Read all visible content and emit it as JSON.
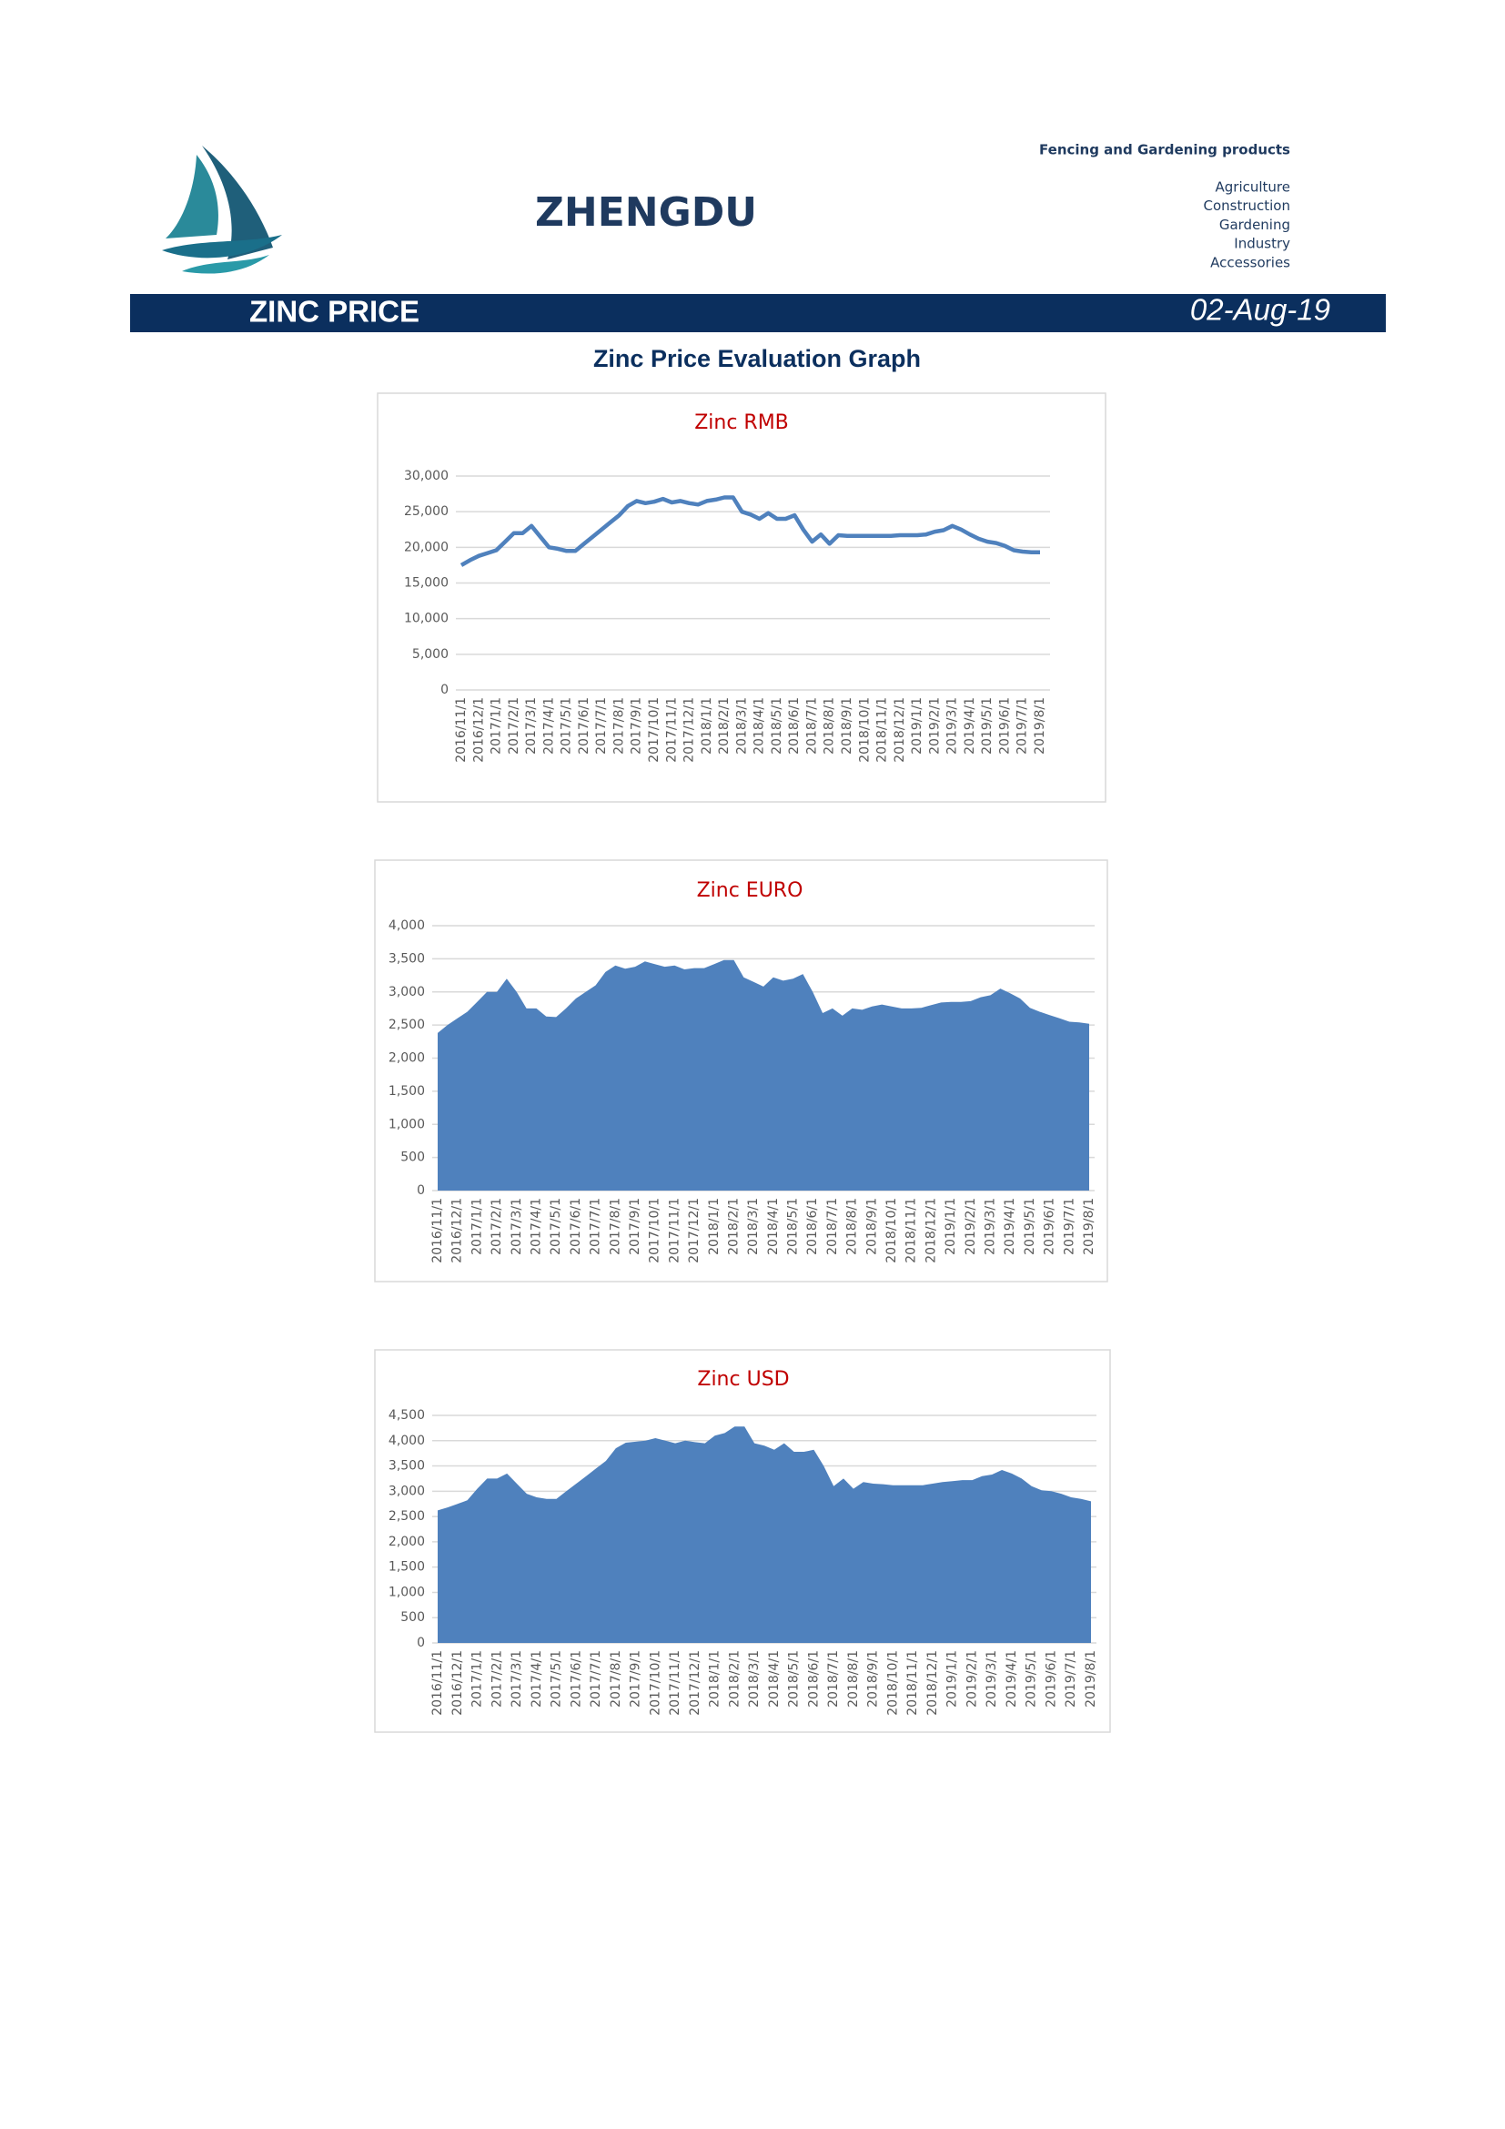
{
  "header": {
    "title": "ZHENGDU",
    "tagline": "Fencing and Gardening products",
    "products": [
      "Agriculture",
      "Construction",
      "Gardening",
      "Industry",
      "Accessories"
    ],
    "band_title": "ZINC PRICE",
    "date": "02-Aug-19",
    "section_title": "Zinc Price Evaluation Graph"
  },
  "chart_data": [
    {
      "type": "line",
      "title": "Zinc RMB",
      "categories": [
        "2016/11/1",
        null,
        "2016/12/1",
        null,
        "2017/1/1",
        null,
        "2017/2/1",
        null,
        "2017/3/1",
        null,
        "2017/4/1",
        null,
        "2017/5/1",
        null,
        "2017/6/1",
        null,
        "2017/7/1",
        null,
        "2017/8/1",
        null,
        "2017/9/1",
        null,
        "2017/10/1",
        null,
        "2017/11/1",
        null,
        "2017/12/1",
        null,
        "2018/1/1",
        null,
        "2018/2/1",
        null,
        "2018/3/1",
        null,
        "2018/4/1",
        null,
        "2018/5/1",
        null,
        "2018/6/1",
        null,
        "2018/7/1",
        null,
        "2018/8/1",
        null,
        "2018/9/1",
        null,
        "2018/10/1",
        null,
        "2018/11/1",
        null,
        "2018/12/1",
        null,
        "2019/1/1",
        null,
        "2019/2/1",
        null,
        "2019/3/1",
        null,
        "2019/4/1",
        null,
        "2019/5/1",
        null,
        "2019/6/1",
        null,
        "2019/7/1",
        null,
        "2019/8/1"
      ],
      "series": [
        {
          "color": "#4f81bd",
          "values": [
            17500,
            18200,
            18800,
            19200,
            19600,
            20800,
            22000,
            22000,
            23000,
            21500,
            20000,
            19800,
            19500,
            19500,
            20500,
            21500,
            22500,
            23500,
            24500,
            25800,
            26500,
            26200,
            26400,
            26800,
            26300,
            26500,
            26200,
            26000,
            26500,
            26700,
            27000,
            27000,
            25000,
            24600,
            24000,
            24800,
            24000,
            24000,
            24500,
            22500,
            20800,
            21800,
            20500,
            21700,
            21600,
            21600,
            21600,
            21600,
            21600,
            21600,
            21700,
            21700,
            21700,
            21800,
            22200,
            22400,
            23000,
            22500,
            21800,
            21200,
            20800,
            20600,
            20200,
            19600,
            19400,
            19300,
            19300
          ]
        }
      ],
      "ylim": [
        0,
        30000
      ],
      "yticks": [
        0,
        {
          "value": 5000,
          "label": "5,000"
        },
        {
          "value": 10000,
          "label": "10,000"
        },
        {
          "value": 15000,
          "label": "15,000"
        },
        {
          "value": 20000,
          "label": "20,000"
        },
        {
          "value": 25000,
          "label": "25,000"
        },
        {
          "value": 30000,
          "label": "30,000"
        }
      ],
      "grid": true
    },
    {
      "type": "area",
      "title": "Zinc EURO",
      "categories": [
        "2016/11/1",
        null,
        "2016/12/1",
        null,
        "2017/1/1",
        null,
        "2017/2/1",
        null,
        "2017/3/1",
        null,
        "2017/4/1",
        null,
        "2017/5/1",
        null,
        "2017/6/1",
        null,
        "2017/7/1",
        null,
        "2017/8/1",
        null,
        "2017/9/1",
        null,
        "2017/10/1",
        null,
        "2017/11/1",
        null,
        "2017/12/1",
        null,
        "2018/1/1",
        null,
        "2018/2/1",
        null,
        "2018/3/1",
        null,
        "2018/4/1",
        null,
        "2018/5/1",
        null,
        "2018/6/1",
        null,
        "2018/7/1",
        null,
        "2018/8/1",
        null,
        "2018/9/1",
        null,
        "2018/10/1",
        null,
        "2018/11/1",
        null,
        "2018/12/1",
        null,
        "2019/1/1",
        null,
        "2019/2/1",
        null,
        "2019/3/1",
        null,
        "2019/4/1",
        null,
        "2019/5/1",
        null,
        "2019/6/1",
        null,
        "2019/7/1",
        null,
        "2019/8/1"
      ],
      "series": [
        {
          "color": "#4f81bd",
          "values": [
            2380,
            2500,
            2600,
            2700,
            2850,
            3000,
            3000,
            3200,
            3000,
            2750,
            2750,
            2630,
            2620,
            2750,
            2900,
            3000,
            3100,
            3300,
            3400,
            3350,
            3380,
            3460,
            3420,
            3380,
            3400,
            3340,
            3360,
            3360,
            3420,
            3480,
            3480,
            3220,
            3150,
            3080,
            3220,
            3170,
            3200,
            3270,
            3000,
            2680,
            2750,
            2640,
            2750,
            2730,
            2780,
            2810,
            2780,
            2750,
            2750,
            2760,
            2800,
            2840,
            2850,
            2850,
            2860,
            2920,
            2950,
            3050,
            2980,
            2900,
            2760,
            2700,
            2650,
            2600,
            2550,
            2540,
            2520
          ]
        }
      ],
      "ylim": [
        0,
        4000
      ],
      "yticks": [
        0,
        500,
        {
          "value": 1000,
          "label": "1,000"
        },
        {
          "value": 1500,
          "label": "1,500"
        },
        {
          "value": 2000,
          "label": "2,000"
        },
        {
          "value": 2500,
          "label": "2,500"
        },
        {
          "value": 3000,
          "label": "3,000"
        },
        {
          "value": 3500,
          "label": "3,500"
        },
        {
          "value": 4000,
          "label": "4,000"
        }
      ],
      "grid": true
    },
    {
      "type": "area",
      "title": "Zinc USD",
      "categories": [
        "2016/11/1",
        null,
        "2016/12/1",
        null,
        "2017/1/1",
        null,
        "2017/2/1",
        null,
        "2017/3/1",
        null,
        "2017/4/1",
        null,
        "2017/5/1",
        null,
        "2017/6/1",
        null,
        "2017/7/1",
        null,
        "2017/8/1",
        null,
        "2017/9/1",
        null,
        "2017/10/1",
        null,
        "2017/11/1",
        null,
        "2017/12/1",
        null,
        "2018/1/1",
        null,
        "2018/2/1",
        null,
        "2018/3/1",
        null,
        "2018/4/1",
        null,
        "2018/5/1",
        null,
        "2018/6/1",
        null,
        "2018/7/1",
        null,
        "2018/8/1",
        null,
        "2018/9/1",
        null,
        "2018/10/1",
        null,
        "2018/11/1",
        null,
        "2018/12/1",
        null,
        "2019/1/1",
        null,
        "2019/2/1",
        null,
        "2019/3/1",
        null,
        "2019/4/1",
        null,
        "2019/5/1",
        null,
        "2019/6/1",
        null,
        "2019/7/1",
        null,
        "2019/8/1"
      ],
      "series": [
        {
          "color": "#4f81bd",
          "values": [
            2620,
            2680,
            2750,
            2820,
            3050,
            3250,
            3250,
            3350,
            3150,
            2950,
            2880,
            2850,
            2850,
            3000,
            3150,
            3300,
            3450,
            3600,
            3850,
            3960,
            3980,
            4000,
            4050,
            4000,
            3950,
            4000,
            3970,
            3950,
            4100,
            4150,
            4280,
            4280,
            3950,
            3900,
            3820,
            3950,
            3780,
            3780,
            3820,
            3500,
            3100,
            3250,
            3050,
            3180,
            3150,
            3140,
            3120,
            3120,
            3120,
            3120,
            3150,
            3180,
            3200,
            3220,
            3220,
            3300,
            3330,
            3420,
            3350,
            3250,
            3100,
            3020,
            3000,
            2950,
            2880,
            2850,
            2800
          ]
        }
      ],
      "ylim": [
        0,
        4500
      ],
      "yticks": [
        0,
        500,
        {
          "value": 1000,
          "label": "1,000"
        },
        {
          "value": 1500,
          "label": "1,500"
        },
        {
          "value": 2000,
          "label": "2,000"
        },
        {
          "value": 2500,
          "label": "2,500"
        },
        {
          "value": 3000,
          "label": "3,000"
        },
        {
          "value": 3500,
          "label": "3,500"
        },
        {
          "value": 4000,
          "label": "4,000"
        },
        {
          "value": 4500,
          "label": "4,500"
        }
      ],
      "grid": true
    }
  ]
}
